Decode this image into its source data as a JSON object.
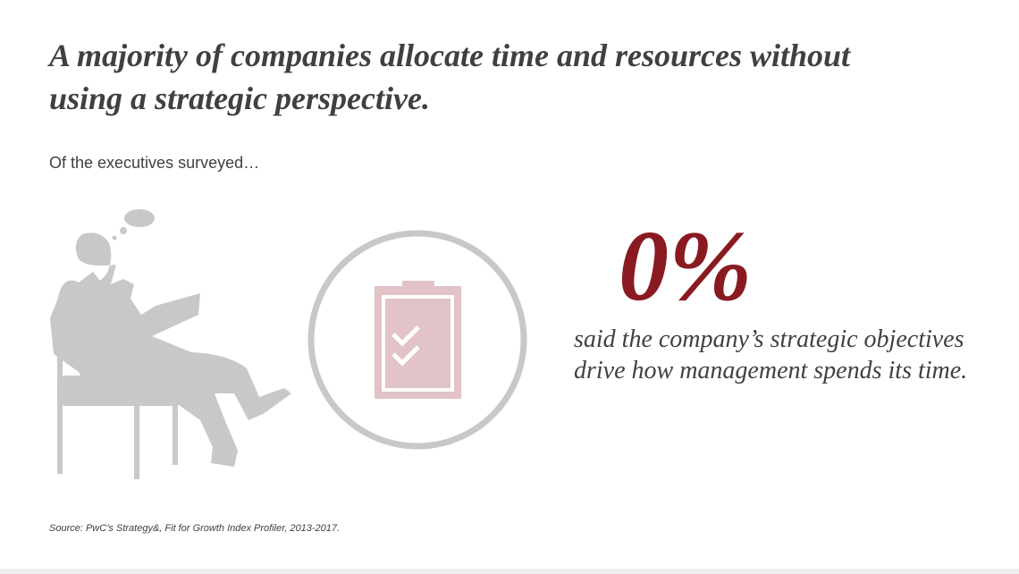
{
  "header": {
    "title": "A majority of companies allocate time and resources without using a strategic perspective.",
    "subtitle": "Of the executives surveyed…"
  },
  "stat": {
    "value": "0%",
    "description": "said the company’s strategic objectives drive how management spends its time."
  },
  "footer": {
    "source": "Source: PwC’s Strategy&, Fit for Growth Index Profiler, 2013-2017."
  }
}
